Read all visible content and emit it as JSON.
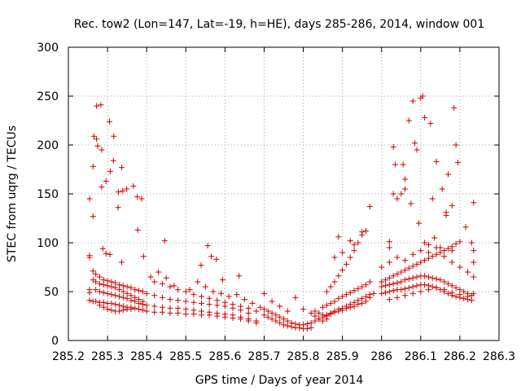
{
  "chart_data": {
    "type": "scatter",
    "title": "Rec. tow2 (Lon=147, Lat=-19, h=HE), days 285-286, 2014, window 001",
    "xlabel": "GPS time / Days of year 2014",
    "ylabel": "STEC from uqrg / TECUs",
    "xlim": [
      285.2,
      286.3
    ],
    "ylim": [
      0,
      300
    ],
    "xticks": [
      "285.2",
      "285.3",
      "285.4",
      "285.5",
      "285.6",
      "285.7",
      "285.8",
      "285.9",
      "286",
      "286.1",
      "286.2",
      "286.3"
    ],
    "yticks": [
      "0",
      "50",
      "100",
      "150",
      "200",
      "250",
      "300"
    ],
    "grid": true,
    "legend": "none",
    "marker": "plus",
    "color": "#cc0000",
    "points": [
      [
        285.254,
        145
      ],
      [
        285.254,
        85
      ],
      [
        285.254,
        87
      ],
      [
        285.254,
        52
      ],
      [
        285.254,
        49
      ],
      [
        285.254,
        41
      ],
      [
        285.263,
        178
      ],
      [
        285.263,
        127
      ],
      [
        285.263,
        71
      ],
      [
        285.263,
        62
      ],
      [
        285.263,
        40
      ],
      [
        285.265,
        209
      ],
      [
        285.272,
        206
      ],
      [
        285.272,
        240
      ],
      [
        285.275,
        199
      ],
      [
        285.283,
        241
      ],
      [
        285.285,
        195
      ],
      [
        285.285,
        157
      ],
      [
        285.288,
        94
      ],
      [
        285.296,
        163
      ],
      [
        285.305,
        224
      ],
      [
        285.307,
        173
      ],
      [
        285.316,
        209
      ],
      [
        285.315,
        184
      ],
      [
        285.327,
        136
      ],
      [
        285.328,
        152
      ],
      [
        285.336,
        177
      ],
      [
        285.339,
        153
      ],
      [
        285.349,
        155
      ],
      [
        285.366,
        158
      ],
      [
        285.376,
        147
      ],
      [
        285.387,
        145
      ],
      [
        285.377,
        113
      ],
      [
        285.392,
        86
      ],
      [
        285.446,
        102
      ],
      [
        285.556,
        97
      ],
      [
        285.594,
        62
      ],
      [
        285.636,
        66
      ],
      [
        285.565,
        86
      ],
      [
        285.578,
        83
      ],
      [
        285.539,
        77
      ],
      [
        285.296,
        89
      ],
      [
        285.306,
        88
      ],
      [
        285.336,
        80
      ],
      [
        285.27,
        68
      ],
      [
        285.28,
        65
      ],
      [
        285.29,
        62
      ],
      [
        285.3,
        61
      ],
      [
        285.31,
        60
      ],
      [
        285.32,
        59
      ],
      [
        285.33,
        57
      ],
      [
        285.34,
        56
      ],
      [
        285.35,
        55
      ],
      [
        285.36,
        54
      ],
      [
        285.37,
        52
      ],
      [
        285.38,
        51
      ],
      [
        285.39,
        50
      ],
      [
        285.27,
        60
      ],
      [
        285.28,
        58
      ],
      [
        285.29,
        57
      ],
      [
        285.3,
        56
      ],
      [
        285.31,
        55
      ],
      [
        285.32,
        54
      ],
      [
        285.33,
        52
      ],
      [
        285.34,
        50
      ],
      [
        285.35,
        48
      ],
      [
        285.36,
        46
      ],
      [
        285.37,
        44
      ],
      [
        285.38,
        42
      ],
      [
        285.39,
        40
      ],
      [
        285.27,
        52
      ],
      [
        285.28,
        50
      ],
      [
        285.29,
        49
      ],
      [
        285.3,
        48
      ],
      [
        285.31,
        47
      ],
      [
        285.32,
        46
      ],
      [
        285.33,
        45
      ],
      [
        285.34,
        44
      ],
      [
        285.35,
        43
      ],
      [
        285.36,
        41
      ],
      [
        285.37,
        40
      ],
      [
        285.38,
        38
      ],
      [
        285.39,
        37
      ],
      [
        285.27,
        40
      ],
      [
        285.28,
        39
      ],
      [
        285.29,
        39
      ],
      [
        285.3,
        38
      ],
      [
        285.31,
        38
      ],
      [
        285.32,
        37
      ],
      [
        285.33,
        36
      ],
      [
        285.34,
        35
      ],
      [
        285.35,
        34
      ],
      [
        285.36,
        34
      ],
      [
        285.37,
        33
      ],
      [
        285.38,
        32
      ],
      [
        285.39,
        31
      ],
      [
        285.28,
        36
      ],
      [
        285.29,
        34
      ],
      [
        285.3,
        32
      ],
      [
        285.31,
        31
      ],
      [
        285.32,
        30
      ],
      [
        285.33,
        30
      ],
      [
        285.34,
        31
      ],
      [
        285.35,
        32
      ],
      [
        285.36,
        32
      ],
      [
        285.4,
        48
      ],
      [
        285.42,
        46
      ],
      [
        285.44,
        44
      ],
      [
        285.46,
        42
      ],
      [
        285.48,
        41
      ],
      [
        285.5,
        40
      ],
      [
        285.52,
        39
      ],
      [
        285.54,
        38
      ],
      [
        285.56,
        37
      ],
      [
        285.58,
        36
      ],
      [
        285.6,
        35
      ],
      [
        285.62,
        33
      ],
      [
        285.64,
        31
      ],
      [
        285.66,
        28
      ],
      [
        285.4,
        36
      ],
      [
        285.42,
        35
      ],
      [
        285.44,
        34
      ],
      [
        285.46,
        33
      ],
      [
        285.48,
        33
      ],
      [
        285.5,
        32
      ],
      [
        285.52,
        31
      ],
      [
        285.54,
        30
      ],
      [
        285.56,
        29
      ],
      [
        285.58,
        28
      ],
      [
        285.6,
        27
      ],
      [
        285.62,
        26
      ],
      [
        285.64,
        24
      ],
      [
        285.66,
        22
      ],
      [
        285.68,
        20
      ],
      [
        285.4,
        30
      ],
      [
        285.42,
        29
      ],
      [
        285.44,
        29
      ],
      [
        285.46,
        28
      ],
      [
        285.48,
        28
      ],
      [
        285.5,
        27
      ],
      [
        285.52,
        27
      ],
      [
        285.54,
        26
      ],
      [
        285.56,
        26
      ],
      [
        285.58,
        25
      ],
      [
        285.6,
        24
      ],
      [
        285.62,
        23
      ],
      [
        285.64,
        22
      ],
      [
        285.66,
        20
      ],
      [
        285.68,
        18
      ],
      [
        285.42,
        60
      ],
      [
        285.44,
        58
      ],
      [
        285.46,
        55
      ],
      [
        285.48,
        52
      ],
      [
        285.5,
        50
      ],
      [
        285.52,
        47
      ],
      [
        285.54,
        45
      ],
      [
        285.56,
        43
      ],
      [
        285.58,
        41
      ],
      [
        285.6,
        39
      ],
      [
        285.62,
        37
      ],
      [
        285.64,
        35
      ],
      [
        285.66,
        33
      ],
      [
        285.68,
        30
      ],
      [
        285.43,
        70
      ],
      [
        285.41,
        65
      ],
      [
        285.45,
        64
      ],
      [
        285.47,
        56
      ],
      [
        285.51,
        52
      ],
      [
        285.53,
        60
      ],
      [
        285.55,
        55
      ],
      [
        285.57,
        50
      ],
      [
        285.59,
        48
      ],
      [
        285.61,
        45
      ],
      [
        285.63,
        47
      ],
      [
        285.65,
        42
      ],
      [
        285.67,
        38
      ],
      [
        285.69,
        34
      ],
      [
        285.7,
        26
      ],
      [
        285.71,
        24
      ],
      [
        285.72,
        22
      ],
      [
        285.73,
        20
      ],
      [
        285.74,
        18
      ],
      [
        285.75,
        16
      ],
      [
        285.76,
        15
      ],
      [
        285.77,
        14
      ],
      [
        285.78,
        13
      ],
      [
        285.79,
        13
      ],
      [
        285.8,
        12
      ],
      [
        285.81,
        12
      ],
      [
        285.82,
        13
      ],
      [
        285.7,
        32
      ],
      [
        285.71,
        30
      ],
      [
        285.72,
        28
      ],
      [
        285.73,
        26
      ],
      [
        285.74,
        24
      ],
      [
        285.75,
        22
      ],
      [
        285.76,
        20
      ],
      [
        285.77,
        18
      ],
      [
        285.78,
        17
      ],
      [
        285.79,
        16
      ],
      [
        285.8,
        16
      ],
      [
        285.81,
        17
      ],
      [
        285.82,
        18
      ],
      [
        285.7,
        48
      ],
      [
        285.72,
        40
      ],
      [
        285.74,
        35
      ],
      [
        285.76,
        30
      ],
      [
        285.78,
        44
      ],
      [
        285.8,
        32
      ],
      [
        285.82,
        28
      ],
      [
        285.83,
        25
      ],
      [
        285.84,
        22
      ],
      [
        285.85,
        20
      ],
      [
        285.86,
        22
      ],
      [
        285.83,
        30
      ],
      [
        285.84,
        28
      ],
      [
        285.85,
        26
      ],
      [
        285.86,
        25
      ],
      [
        285.87,
        27
      ],
      [
        285.88,
        29
      ],
      [
        285.89,
        30
      ],
      [
        285.9,
        31
      ],
      [
        285.91,
        33
      ],
      [
        285.92,
        34
      ],
      [
        285.93,
        35
      ],
      [
        285.94,
        37
      ],
      [
        285.95,
        38
      ],
      [
        285.96,
        40
      ],
      [
        285.97,
        44
      ],
      [
        285.98,
        48
      ],
      [
        285.83,
        20
      ],
      [
        285.84,
        22
      ],
      [
        285.85,
        24
      ],
      [
        285.86,
        26
      ],
      [
        285.87,
        28
      ],
      [
        285.88,
        30
      ],
      [
        285.89,
        32
      ],
      [
        285.9,
        33
      ],
      [
        285.91,
        35
      ],
      [
        285.92,
        37
      ],
      [
        285.93,
        39
      ],
      [
        285.94,
        41
      ],
      [
        285.95,
        43
      ],
      [
        285.96,
        45
      ],
      [
        285.97,
        47
      ],
      [
        285.85,
        34
      ],
      [
        285.86,
        36
      ],
      [
        285.87,
        38
      ],
      [
        285.88,
        40
      ],
      [
        285.89,
        43
      ],
      [
        285.9,
        45
      ],
      [
        285.91,
        47
      ],
      [
        285.92,
        49
      ],
      [
        285.93,
        51
      ],
      [
        285.94,
        53
      ],
      [
        285.95,
        55
      ],
      [
        285.96,
        57
      ],
      [
        285.97,
        60
      ],
      [
        285.86,
        50
      ],
      [
        285.87,
        55
      ],
      [
        285.88,
        60
      ],
      [
        285.89,
        66
      ],
      [
        285.9,
        72
      ],
      [
        285.91,
        78
      ],
      [
        285.92,
        85
      ],
      [
        285.93,
        92
      ],
      [
        285.94,
        100
      ],
      [
        285.95,
        108
      ],
      [
        285.96,
        112
      ],
      [
        285.97,
        137
      ],
      [
        285.88,
        85
      ],
      [
        285.89,
        106
      ],
      [
        285.9,
        90
      ],
      [
        285.92,
        102
      ],
      [
        285.93,
        98
      ],
      [
        285.95,
        111
      ],
      [
        286.02,
        95
      ],
      [
        286.02,
        101
      ],
      [
        286.03,
        198
      ],
      [
        286.035,
        180
      ],
      [
        286.05,
        150
      ],
      [
        286.055,
        180
      ],
      [
        286.06,
        165
      ],
      [
        286.07,
        225
      ],
      [
        286.08,
        245
      ],
      [
        286.085,
        202
      ],
      [
        286.09,
        195
      ],
      [
        286.1,
        248
      ],
      [
        286.105,
        250
      ],
      [
        286.11,
        228
      ],
      [
        286.125,
        222
      ],
      [
        286.13,
        145
      ],
      [
        286.14,
        183
      ],
      [
        286.155,
        155
      ],
      [
        286.165,
        131
      ],
      [
        286.17,
        170
      ],
      [
        286.18,
        138
      ],
      [
        286.185,
        238
      ],
      [
        286.19,
        200
      ],
      [
        286.195,
        182
      ],
      [
        286.03,
        150
      ],
      [
        286.04,
        145
      ],
      [
        286.06,
        155
      ],
      [
        286.075,
        140
      ],
      [
        286.095,
        120
      ],
      [
        286.11,
        100
      ],
      [
        286.12,
        90
      ],
      [
        286.135,
        105
      ],
      [
        286.15,
        95
      ],
      [
        286.165,
        128
      ],
      [
        286.18,
        92
      ],
      [
        286.19,
        99
      ],
      [
        286.2,
        101
      ],
      [
        286.215,
        116
      ],
      [
        286.235,
        141
      ],
      [
        286.23,
        100
      ],
      [
        286.0,
        60
      ],
      [
        286.01,
        62
      ],
      [
        286.02,
        64
      ],
      [
        286.03,
        66
      ],
      [
        286.04,
        68
      ],
      [
        286.05,
        70
      ],
      [
        286.06,
        72
      ],
      [
        286.07,
        74
      ],
      [
        286.08,
        76
      ],
      [
        286.09,
        78
      ],
      [
        286.1,
        80
      ],
      [
        286.11,
        82
      ],
      [
        286.12,
        84
      ],
      [
        286.13,
        86
      ],
      [
        286.14,
        88
      ],
      [
        286.15,
        90
      ],
      [
        286.16,
        92
      ],
      [
        286.17,
        94
      ],
      [
        286.18,
        96
      ],
      [
        286.0,
        55
      ],
      [
        286.01,
        56
      ],
      [
        286.02,
        57
      ],
      [
        286.03,
        58
      ],
      [
        286.04,
        59
      ],
      [
        286.05,
        60
      ],
      [
        286.06,
        62
      ],
      [
        286.07,
        63
      ],
      [
        286.08,
        64
      ],
      [
        286.09,
        65
      ],
      [
        286.1,
        66
      ],
      [
        286.11,
        66
      ],
      [
        286.12,
        65
      ],
      [
        286.13,
        64
      ],
      [
        286.14,
        63
      ],
      [
        286.15,
        62
      ],
      [
        286.16,
        60
      ],
      [
        286.17,
        58
      ],
      [
        286.18,
        56
      ],
      [
        286.19,
        54
      ],
      [
        286.2,
        52
      ],
      [
        286.21,
        50
      ],
      [
        286.22,
        48
      ],
      [
        286.23,
        46
      ],
      [
        286.0,
        48
      ],
      [
        286.01,
        49
      ],
      [
        286.02,
        50
      ],
      [
        286.03,
        51
      ],
      [
        286.04,
        52
      ],
      [
        286.05,
        52
      ],
      [
        286.06,
        53
      ],
      [
        286.07,
        54
      ],
      [
        286.08,
        55
      ],
      [
        286.09,
        56
      ],
      [
        286.1,
        57
      ],
      [
        286.11,
        57
      ],
      [
        286.12,
        56
      ],
      [
        286.13,
        55
      ],
      [
        286.14,
        54
      ],
      [
        286.15,
        52
      ],
      [
        286.16,
        50
      ],
      [
        286.17,
        48
      ],
      [
        286.18,
        46
      ],
      [
        286.19,
        45
      ],
      [
        286.2,
        44
      ],
      [
        286.21,
        43
      ],
      [
        286.22,
        42
      ],
      [
        286.23,
        41
      ],
      [
        286.02,
        42
      ],
      [
        286.04,
        44
      ],
      [
        286.06,
        46
      ],
      [
        286.08,
        48
      ],
      [
        286.1,
        50
      ],
      [
        286.12,
        52
      ],
      [
        286.14,
        54
      ],
      [
        286.16,
        52
      ],
      [
        286.18,
        49
      ],
      [
        286.2,
        47
      ],
      [
        286.22,
        45
      ],
      [
        286.235,
        48
      ],
      [
        286.0,
        75
      ],
      [
        286.02,
        80
      ],
      [
        286.04,
        85
      ],
      [
        286.06,
        82
      ],
      [
        286.08,
        88
      ],
      [
        286.1,
        92
      ],
      [
        286.12,
        98
      ],
      [
        286.14,
        95
      ],
      [
        286.16,
        86
      ],
      [
        286.18,
        80
      ],
      [
        286.2,
        75
      ],
      [
        286.22,
        70
      ],
      [
        286.235,
        65
      ],
      [
        286.235,
        80
      ],
      [
        286.235,
        92
      ]
    ]
  }
}
